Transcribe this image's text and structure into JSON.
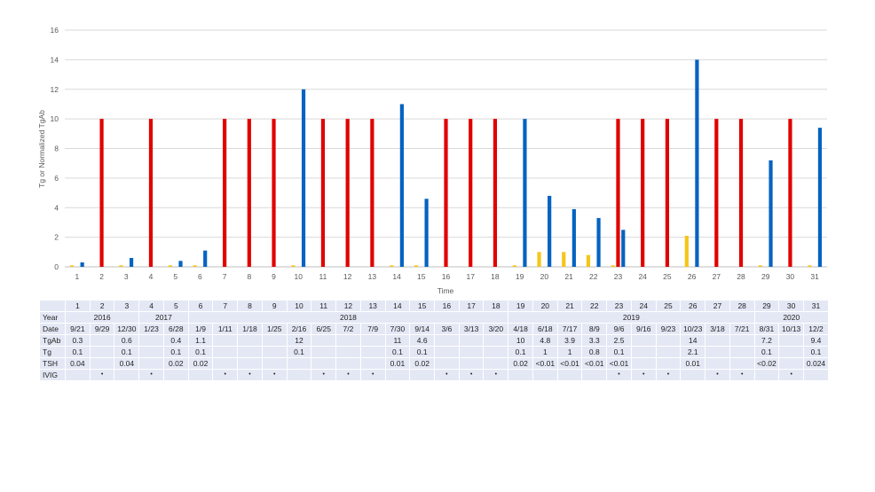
{
  "chart_data": {
    "type": "bar",
    "ylabel": "Tg or Normalized TgAb",
    "xlabel": "Time",
    "ylim": [
      0,
      16
    ],
    "yticks": [
      0,
      2,
      4,
      6,
      8,
      10,
      12,
      14,
      16
    ],
    "grid": true,
    "categories": [
      "1",
      "2",
      "3",
      "4",
      "5",
      "6",
      "7",
      "8",
      "9",
      "10",
      "11",
      "12",
      "13",
      "14",
      "15",
      "16",
      "17",
      "18",
      "19",
      "20",
      "21",
      "22",
      "23",
      "24",
      "25",
      "26",
      "27",
      "28",
      "29",
      "30",
      "31"
    ],
    "series": [
      {
        "color": "#f5c518",
        "values": [
          0.1,
          0,
          0.1,
          0,
          0.1,
          0.1,
          0,
          0,
          0,
          0.1,
          0,
          0,
          0,
          0.1,
          0.1,
          0,
          0,
          0,
          0.1,
          1,
          1,
          0.8,
          0.1,
          0,
          0,
          2.1,
          0,
          0,
          0.1,
          0,
          0.1
        ]
      },
      {
        "color": "#e00000",
        "values": [
          0,
          10,
          0,
          10,
          0,
          0,
          10,
          10,
          10,
          0,
          10,
          10,
          10,
          0,
          0,
          10,
          10,
          10,
          0,
          0,
          0,
          0,
          10,
          10,
          10,
          0,
          10,
          10,
          0,
          10,
          0
        ]
      },
      {
        "color": "#0563c1",
        "values": [
          0.3,
          0,
          0.6,
          0,
          0.4,
          1.1,
          0,
          0,
          0,
          12,
          0,
          0,
          0,
          11,
          4.6,
          0,
          0,
          0,
          10,
          4.8,
          3.9,
          3.3,
          2.5,
          0,
          0,
          14,
          0,
          0,
          7.2,
          0,
          9.4
        ]
      }
    ]
  },
  "table": {
    "numbers": [
      "1",
      "2",
      "3",
      "4",
      "5",
      "6",
      "7",
      "8",
      "9",
      "10",
      "11",
      "12",
      "13",
      "14",
      "15",
      "16",
      "17",
      "18",
      "19",
      "20",
      "21",
      "22",
      "23",
      "24",
      "25",
      "26",
      "27",
      "28",
      "29",
      "30",
      "31"
    ],
    "year_label": "Year",
    "years": [
      {
        "label": "2016",
        "span": 3
      },
      {
        "label": "2017",
        "span": 2
      },
      {
        "label": "2018",
        "span": 13
      },
      {
        "label": "2019",
        "span": 10
      },
      {
        "label": "2020",
        "span": 3
      }
    ],
    "rows": [
      {
        "label": "Date",
        "cells": [
          "9/21",
          "9/29",
          "12/30",
          "1/23",
          "6/28",
          "1/9",
          "1/11",
          "1/18",
          "1/25",
          "2/16",
          "6/25",
          "7/2",
          "7/9",
          "7/30",
          "9/14",
          "3/6",
          "3/13",
          "3/20",
          "4/18",
          "6/18",
          "7/17",
          "8/9",
          "9/6",
          "9/16",
          "9/23",
          "10/23",
          "3/18",
          "7/21",
          "8/31",
          "10/13",
          "12/2"
        ]
      },
      {
        "label": "TgAb",
        "cells": [
          "0.3",
          "",
          "0.6",
          "",
          "0.4",
          "1.1",
          "",
          "",
          "",
          "12",
          "",
          "",
          "",
          "11",
          "4.6",
          "",
          "",
          "",
          "10",
          "4.8",
          "3.9",
          "3.3",
          "2.5",
          "",
          "",
          "14",
          "",
          "",
          "7.2",
          "",
          "9.4"
        ]
      },
      {
        "label": "Tg",
        "cells": [
          "0.1",
          "",
          "0.1",
          "",
          "0.1",
          "0.1",
          "",
          "",
          "",
          "0.1",
          "",
          "",
          "",
          "0.1",
          "0.1",
          "",
          "",
          "",
          "0.1",
          "1",
          "1",
          "0.8",
          "0.1",
          "",
          "",
          "2.1",
          "",
          "",
          "0.1",
          "",
          "0.1"
        ]
      },
      {
        "label": "TSH",
        "cells": [
          "0.04",
          "",
          "0.04",
          "",
          "0.02",
          "0.02",
          "",
          "",
          "",
          "",
          "",
          "",
          "",
          "0.01",
          "0.02",
          "",
          "",
          "",
          "0.02",
          "<0.01",
          "<0.01",
          "<0.01",
          "<0.01",
          "",
          "",
          "0.01",
          "",
          "",
          "<0.02",
          "",
          "0.024"
        ]
      },
      {
        "label": "IVIG",
        "cells": [
          "",
          "•",
          "",
          "•",
          "",
          "",
          "•",
          "•",
          "•",
          "",
          "•",
          "•",
          "•",
          "",
          "",
          "•",
          "•",
          "•",
          "",
          "",
          "",
          "",
          "•",
          "•",
          "•",
          "",
          "•",
          "•",
          "",
          "•",
          ""
        ]
      }
    ]
  }
}
